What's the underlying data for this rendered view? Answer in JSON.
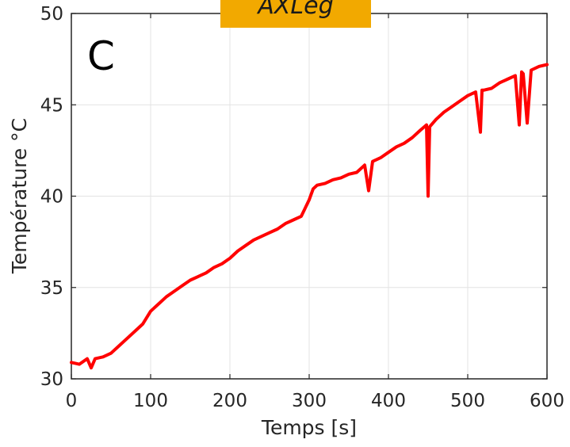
{
  "badge": {
    "text": "AXLeg",
    "color": "#f2a900"
  },
  "chart_data": {
    "type": "line",
    "panel_label": "C",
    "xlabel": "Temps [s]",
    "ylabel": "Température °C",
    "xlim": [
      0,
      600
    ],
    "ylim": [
      30,
      50
    ],
    "xticks": [
      "0",
      "100",
      "200",
      "300",
      "400",
      "500",
      "600"
    ],
    "yticks": [
      "30",
      "35",
      "40",
      "45",
      "50"
    ],
    "grid": true,
    "line_color": "#ff0000",
    "series": [
      {
        "x": [
          0,
          10,
          20,
          25,
          30,
          40,
          50,
          60,
          70,
          80,
          90,
          100,
          110,
          120,
          130,
          140,
          150,
          160,
          170,
          180,
          190,
          200,
          210,
          220,
          230,
          240,
          250,
          260,
          270,
          280,
          290,
          300,
          305,
          310,
          320,
          330,
          340,
          350,
          360,
          370,
          375,
          380,
          390,
          400,
          410,
          420,
          430,
          440,
          448,
          450,
          452,
          460,
          470,
          480,
          490,
          500,
          510,
          516,
          518,
          520,
          530,
          540,
          550,
          560,
          565,
          568,
          570,
          575,
          580,
          590,
          600
        ],
        "y": [
          30.9,
          30.8,
          31.1,
          30.6,
          31.1,
          31.2,
          31.4,
          31.8,
          32.2,
          32.6,
          33.0,
          33.7,
          34.1,
          34.5,
          34.8,
          35.1,
          35.4,
          35.6,
          35.8,
          36.1,
          36.3,
          36.6,
          37.0,
          37.3,
          37.6,
          37.8,
          38.0,
          38.2,
          38.5,
          38.7,
          38.9,
          39.8,
          40.4,
          40.6,
          40.7,
          40.9,
          41.0,
          41.2,
          41.3,
          41.7,
          40.3,
          41.9,
          42.1,
          42.4,
          42.7,
          42.9,
          43.2,
          43.6,
          43.9,
          40.0,
          43.8,
          44.2,
          44.6,
          44.9,
          45.2,
          45.5,
          45.7,
          43.5,
          45.8,
          45.8,
          45.9,
          46.2,
          46.4,
          46.6,
          43.9,
          46.8,
          46.7,
          44.0,
          46.9,
          47.1,
          47.2
        ]
      }
    ]
  }
}
